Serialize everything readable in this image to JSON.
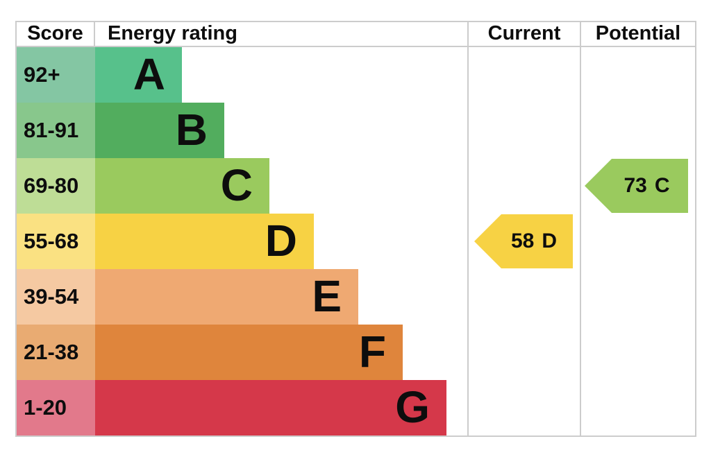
{
  "header": {
    "score": "Score",
    "energy_rating": "Energy rating",
    "current": "Current",
    "potential": "Potential"
  },
  "bands": [
    {
      "letter": "A",
      "score_range": "92+",
      "bar_color": "#57c18b",
      "score_cell_color": "#84c6a3"
    },
    {
      "letter": "B",
      "score_range": "81-91",
      "bar_color": "#52ad5e",
      "score_cell_color": "#88c78c"
    },
    {
      "letter": "C",
      "score_range": "69-80",
      "bar_color": "#9aca5e",
      "score_cell_color": "#bedd96"
    },
    {
      "letter": "D",
      "score_range": "55-68",
      "bar_color": "#f7d244",
      "score_cell_color": "#fae182"
    },
    {
      "letter": "E",
      "score_range": "39-54",
      "bar_color": "#efa972",
      "score_cell_color": "#f5c9a2"
    },
    {
      "letter": "F",
      "score_range": "21-38",
      "bar_color": "#df853c",
      "score_cell_color": "#e9ab72"
    },
    {
      "letter": "G",
      "score_range": "1-20",
      "bar_color": "#d5384a",
      "score_cell_color": "#e2798b"
    }
  ],
  "current": {
    "value": "58",
    "rating": "D",
    "color": "#f7d244",
    "band_index": 3
  },
  "potential": {
    "value": "73",
    "rating": "C",
    "color": "#9aca5e",
    "band_index": 2
  },
  "border_color": "#cccccc",
  "text_color": "#0d0d0d",
  "chart_data": {
    "type": "bar",
    "title": "Energy rating",
    "columns": [
      "Score",
      "Energy rating",
      "Current",
      "Potential"
    ],
    "categories": [
      "A",
      "B",
      "C",
      "D",
      "E",
      "F",
      "G"
    ],
    "score_ranges": [
      "92+",
      "81-91",
      "69-80",
      "55-68",
      "39-54",
      "21-38",
      "1-20"
    ],
    "band_colors": [
      "#57c18b",
      "#52ad5e",
      "#9aca5e",
      "#f7d244",
      "#efa972",
      "#df853c",
      "#d5384a"
    ],
    "bar_lengths_relative": [
      1,
      1.49,
      2.01,
      2.52,
      3.03,
      3.54,
      4.05
    ],
    "current": {
      "value": 58,
      "rating": "D"
    },
    "potential": {
      "value": 73,
      "rating": "C"
    },
    "legend_position": "none",
    "grid": false
  }
}
